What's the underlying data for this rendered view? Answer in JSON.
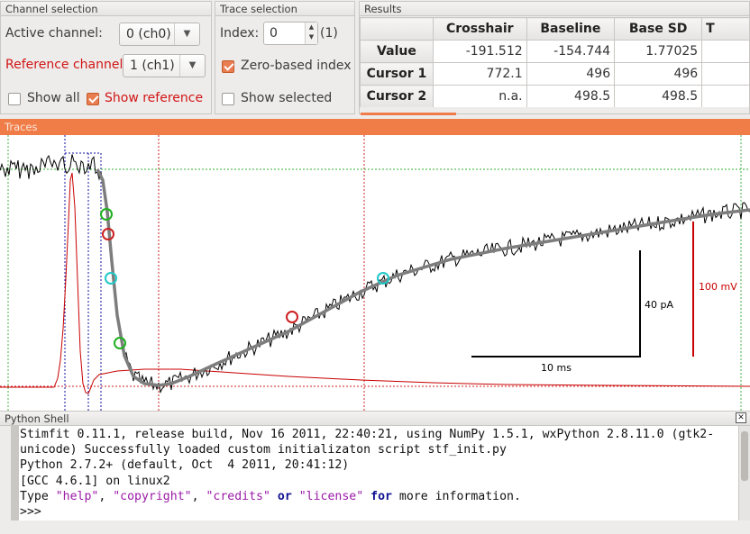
{
  "channel_selection": {
    "title": "Channel selection",
    "active_label": "Active channel:",
    "active_value": "0 (ch0)",
    "reference_label": "Reference channel:",
    "reference_value": "1 (ch1)",
    "show_all_label": "Show all",
    "show_all_checked": false,
    "show_reference_label": "Show reference",
    "show_reference_checked": true
  },
  "trace_selection": {
    "title": "Trace selection",
    "index_label": "Index:",
    "index_value": "0",
    "index_suffix": "(1)",
    "zero_based_label": "Zero-based index",
    "zero_based_checked": true,
    "show_selected_label": "Show selected",
    "show_selected_checked": false
  },
  "results": {
    "title": "Results",
    "columns": [
      "Crosshair",
      "Baseline",
      "Base SD",
      "T"
    ],
    "rows": [
      {
        "label": "Value",
        "cells": [
          "-191.512",
          "-154.744",
          "1.77025"
        ]
      },
      {
        "label": "Cursor 1",
        "cells": [
          "772.1",
          "496",
          "496"
        ]
      },
      {
        "label": "Cursor 2",
        "cells": [
          "n.a.",
          "498.5",
          "498.5"
        ]
      }
    ]
  },
  "traces": {
    "title": "Traces",
    "scalebar_y_label": "40 pA",
    "scalebar_x_label": "10 ms",
    "scalebar_ref_label": "100 mV",
    "colors": {
      "active": "#000000",
      "reference": "#c80000",
      "fit": "#7d7d7d",
      "baseline": "#20a020",
      "cursor": "#cc2020",
      "latency": "#1010a0"
    }
  },
  "shell": {
    "title": "Python Shell",
    "close_glyph": "✕",
    "line1": "Stimfit 0.11.1, release build, Nov 16 2011, 22:40:21, using NumPy 1.5.1, wxPython 2.8.11.0 (gtk2-",
    "line2": "unicode) Successfully loaded custom initializaton script stf_init.py",
    "line3": "Python 2.7.2+ (default, Oct  4 2011, 20:41:12)",
    "line4": "[GCC 4.6.1] on linux2",
    "line5_type": "Type ",
    "line5_help": "\"help\"",
    "line5_sep1": ", ",
    "line5_copyright": "\"copyright\"",
    "line5_sep2": ", ",
    "line5_credits": "\"credits\"",
    "line5_or": "or",
    "line5_license": "\"license\"",
    "line5_for": "for",
    "line5_tail": " more information.",
    "prompt": ">>>"
  }
}
